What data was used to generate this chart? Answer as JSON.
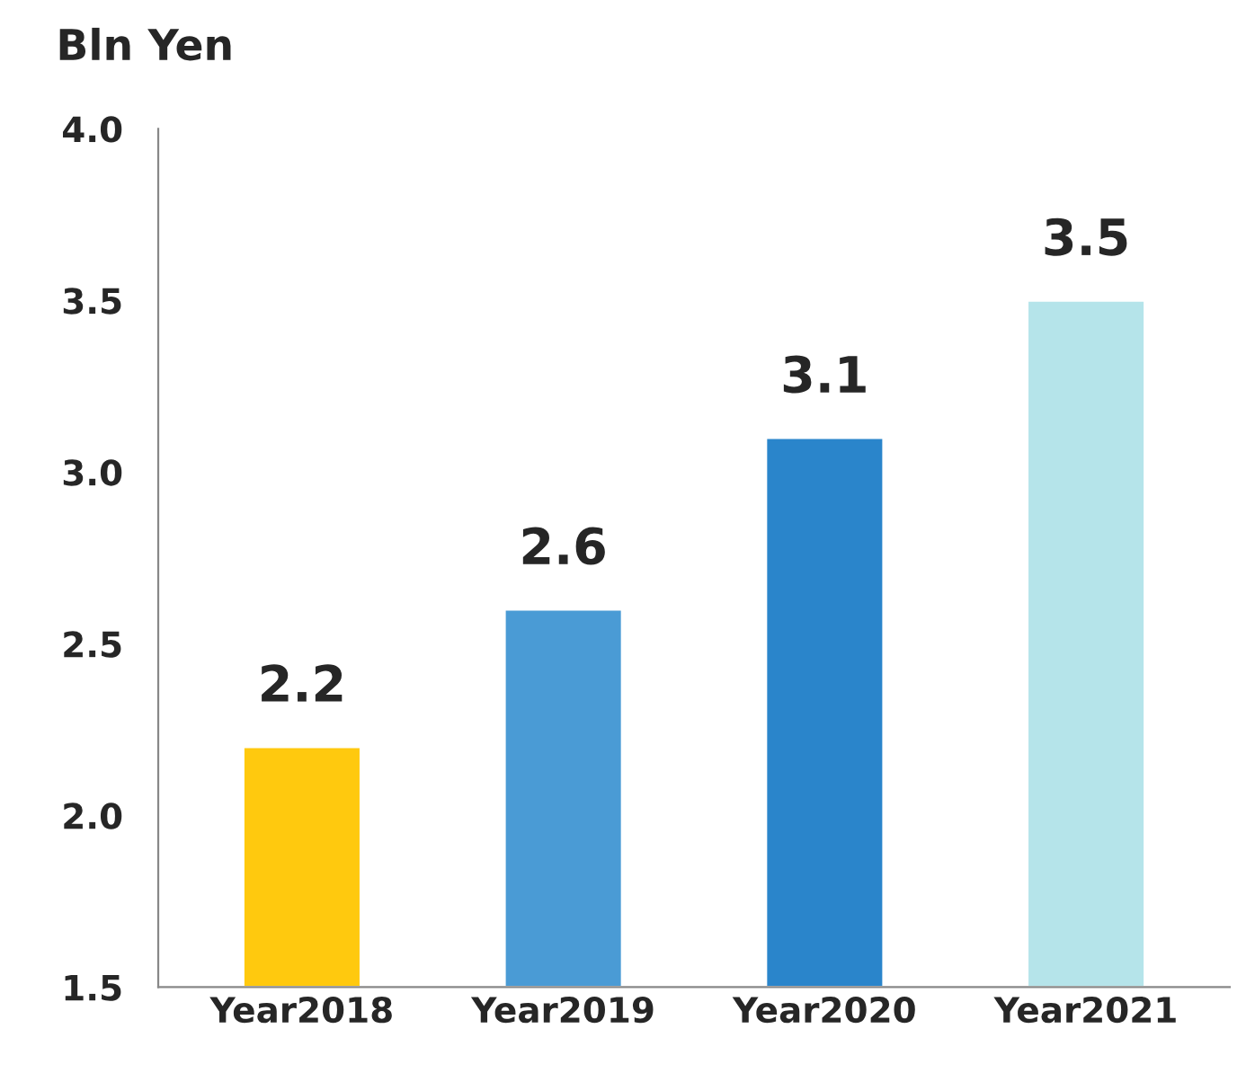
{
  "chart_data": {
    "type": "bar",
    "ylabel": "Bln Yen",
    "categories": [
      "Year2018",
      "Year2019",
      "Year2020",
      "Year2021"
    ],
    "values": [
      2.2,
      2.6,
      3.1,
      3.5
    ],
    "colors": [
      "#ffc90e",
      "#4a9bd5",
      "#2a85cb",
      "#b5e4ea"
    ],
    "ylim": [
      1.5,
      4.0
    ],
    "yticks": [
      {
        "value": 1.5,
        "label": "1.5"
      },
      {
        "value": 2.0,
        "label": "2.0"
      },
      {
        "value": 2.5,
        "label": "2.5"
      },
      {
        "value": 3.0,
        "label": "3.0"
      },
      {
        "value": 3.5,
        "label": "3.5"
      },
      {
        "value": 4.0,
        "label": "4.0"
      }
    ],
    "data_labels": true,
    "grid": false,
    "legend": false
  }
}
